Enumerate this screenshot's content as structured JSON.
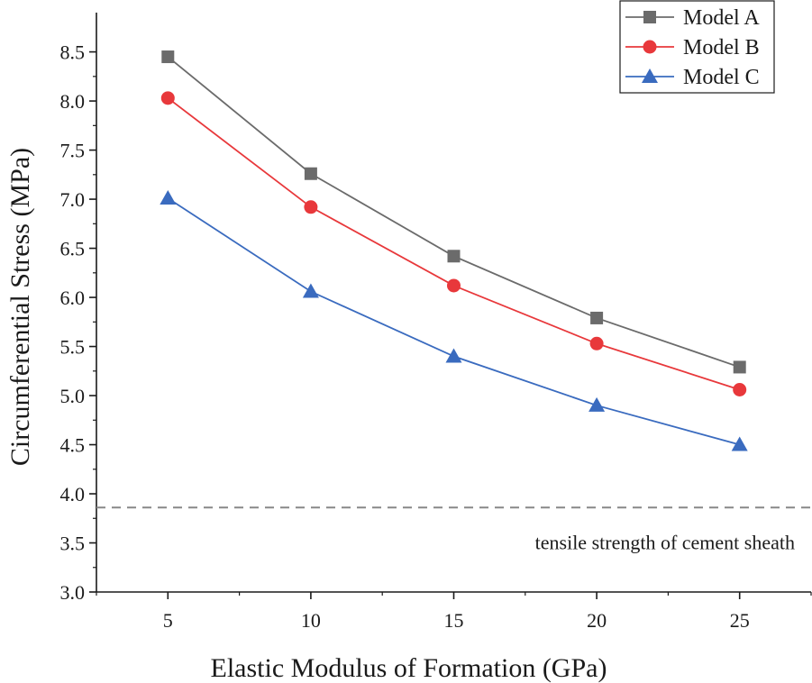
{
  "chart_data": {
    "type": "line",
    "title": "",
    "xlabel": "Elastic Modulus of Formation (GPa)",
    "ylabel": "Circumferential Stress (MPa)",
    "x": [
      5,
      10,
      15,
      20,
      25
    ],
    "x_tick_labels": [
      "5",
      "10",
      "15",
      "20",
      "25"
    ],
    "xlim": [
      2.5,
      27.5
    ],
    "ylim": [
      3.0,
      8.9
    ],
    "y_ticks": [
      "3.0",
      "3.5",
      "4.0",
      "4.5",
      "5.0",
      "5.5",
      "6.0",
      "6.5",
      "7.0",
      "7.5",
      "8.0",
      "8.5"
    ],
    "grid": false,
    "legend_position": "top-right",
    "series": [
      {
        "name": "Model A",
        "marker": "square",
        "color": "#6b6b6b",
        "values": [
          8.45,
          7.26,
          6.42,
          5.79,
          5.29
        ]
      },
      {
        "name": "Model B",
        "marker": "circle",
        "color": "#e8383b",
        "values": [
          8.03,
          6.92,
          6.12,
          5.53,
          5.06
        ]
      },
      {
        "name": "Model C",
        "marker": "triangle",
        "color": "#3a6bbf",
        "values": [
          7.01,
          6.06,
          5.4,
          4.9,
          4.5
        ]
      }
    ],
    "reference_line": {
      "value": 3.86,
      "label": "tensile strength of cement sheath",
      "color": "#888888",
      "style": "dashed"
    }
  }
}
